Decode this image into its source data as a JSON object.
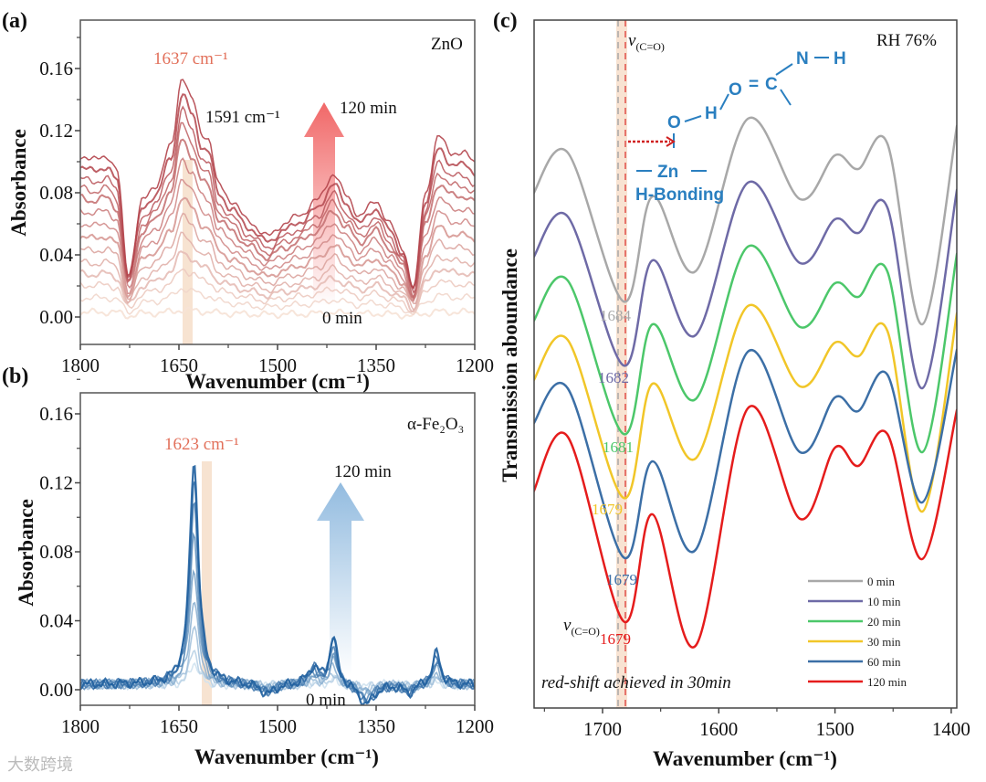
{
  "watermark": "大数跨境",
  "chart_data": [
    {
      "panel": "(a)",
      "type": "line",
      "title": "ZnO",
      "xlabel": "Wavenumber (cm⁻¹)",
      "ylabel": "Absorbance",
      "xlim": [
        1800,
        1200
      ],
      "ylim": [
        -0.018,
        0.19
      ],
      "xticks": [
        1800,
        1650,
        1500,
        1350,
        1200
      ],
      "yticks": [
        "0.00",
        "0.04",
        "0.08",
        "0.12",
        "0.16"
      ],
      "ytick_values": [
        0,
        0.04,
        0.08,
        0.12,
        0.16
      ],
      "annotations": {
        "peak1": "1637 cm⁻¹",
        "peak2": "1591 cm⁻¹",
        "arrow_top": "120 min",
        "arrow_bottom": "0 min"
      },
      "colors": {
        "start": "#f6e2d6",
        "end": "#b2434a",
        "peak": "#e2705a",
        "arrow": "#f06060",
        "band": "#f5dcc6"
      },
      "envelope_x": [
        1800,
        1780,
        1760,
        1745,
        1727,
        1705,
        1685,
        1662,
        1645,
        1630,
        1615,
        1605,
        1590,
        1570,
        1545,
        1515,
        1490,
        1465,
        1440,
        1415,
        1395,
        1375,
        1350,
        1330,
        1310,
        1293,
        1275,
        1255,
        1235,
        1215,
        1200
      ],
      "envelope_y": [
        0.104,
        0.101,
        0.104,
        0.095,
        0.028,
        0.075,
        0.085,
        0.11,
        0.155,
        0.14,
        0.118,
        0.115,
        0.085,
        0.075,
        0.062,
        0.052,
        0.06,
        0.066,
        0.075,
        0.092,
        0.078,
        0.065,
        0.075,
        0.06,
        0.045,
        0.018,
        0.08,
        0.116,
        0.106,
        0.105,
        0.1
      ],
      "series_scales": [
        0.03,
        0.12,
        0.2,
        0.27,
        0.34,
        0.42,
        0.5,
        0.58,
        0.66,
        0.74,
        0.8,
        0.86,
        0.93,
        1.0
      ],
      "series_labels_range": [
        "0 min",
        "120 min"
      ]
    },
    {
      "panel": "(b)",
      "type": "line",
      "title": "α-Fe₂O₃",
      "xlabel": "Wavenumber (cm⁻¹)",
      "ylabel": "Absorbance",
      "xlim": [
        1800,
        1200
      ],
      "ylim": [
        -0.0225,
        0.168
      ],
      "xticks": [
        1800,
        1650,
        1500,
        1350,
        1200
      ],
      "yticks": [
        "0.00",
        "0.04",
        "0.08",
        "0.12",
        "0.16"
      ],
      "ytick_values": [
        0,
        0.04,
        0.08,
        0.12,
        0.16
      ],
      "annotations": {
        "peak1": "1623 cm⁻¹",
        "arrow_top": "120 min",
        "arrow_bottom": "0 min"
      },
      "colors": {
        "start": "#cfe2ef",
        "end": "#1f5f9e",
        "peak": "#e2705a",
        "arrow": "#8db8de",
        "band": "#f5dcc6"
      },
      "peaks": [
        {
          "center": 1627,
          "amplitude": 0.13,
          "width": 8
        },
        {
          "center": 1415,
          "amplitude": 0.028,
          "width": 7
        },
        {
          "center": 1445,
          "amplitude": 0.01,
          "width": 10
        },
        {
          "center": 1258,
          "amplitude": 0.019,
          "width": 7
        },
        {
          "center": 1365,
          "amplitude": -0.012,
          "width": 14
        },
        {
          "center": 1515,
          "amplitude": -0.006,
          "width": 14
        },
        {
          "center": 1300,
          "amplitude": -0.005,
          "width": 10
        }
      ],
      "baseline": 0.003,
      "series_scales": [
        0.1,
        0.15,
        0.25,
        0.38,
        0.52,
        0.66,
        0.8,
        0.92,
        1.0
      ],
      "series_labels_range": [
        "0 min",
        "120 min"
      ]
    },
    {
      "panel": "(c)",
      "type": "line",
      "title": "RH 76%",
      "xlabel": "Wavenumber (cm⁻¹)",
      "ylabel": "Transmission aboundance",
      "xlim": [
        1760,
        1395
      ],
      "ylim": [
        0,
        7.6
      ],
      "xticks": [
        1700,
        1600,
        1500,
        1400
      ],
      "x": [
        1760,
        1730,
        1682,
        1657,
        1620,
        1575,
        1530,
        1500,
        1480,
        1455,
        1425,
        1395
      ],
      "series": [
        {
          "name": "0 min",
          "color": "#a8a8a8",
          "values": [
            5.67,
            6.13,
            4.5,
            5.65,
            4.83,
            6.5,
            5.62,
            6.1,
            5.95,
            6.23,
            4.25,
            6.43
          ],
          "min_label": "1684"
        },
        {
          "name": "10 min",
          "color": "#6e6aa6",
          "values": [
            4.97,
            5.43,
            3.8,
            4.95,
            4.13,
            5.8,
            4.92,
            5.4,
            5.25,
            5.53,
            3.55,
            5.73
          ],
          "min_label": "1682"
        },
        {
          "name": "20 min",
          "color": "#4cc76a",
          "values": [
            4.27,
            4.73,
            3.05,
            4.25,
            3.43,
            5.1,
            4.22,
            4.7,
            4.55,
            4.83,
            2.85,
            5.03
          ],
          "min_label": "1681"
        },
        {
          "name": "30 min",
          "color": "#f1c628",
          "values": [
            3.62,
            4.08,
            2.35,
            3.6,
            2.78,
            4.45,
            3.57,
            4.05,
            3.9,
            4.18,
            2.2,
            4.38
          ],
          "min_label": "1679"
        },
        {
          "name": "60 min",
          "color": "#3c6fa6",
          "values": [
            3.15,
            3.55,
            1.7,
            2.75,
            1.78,
            3.95,
            2.85,
            3.45,
            3.3,
            3.7,
            2.3,
            3.98
          ],
          "min_label": "1679"
        },
        {
          "name": "120 min",
          "color": "#e51c1c",
          "values": [
            2.4,
            3.02,
            1.0,
            2.17,
            0.73,
            3.33,
            2.12,
            2.9,
            2.7,
            3.05,
            1.68,
            3.32
          ],
          "min_label": "1679"
        }
      ],
      "annotations": {
        "nu": "v",
        "nu_sub": "(C=O)",
        "note": "red-shift achieved in 30min",
        "chem": {
          "o1": "O",
          "h1": "H",
          "o2": "O",
          "eq": "=",
          "c": "C",
          "n": "N",
          "h2": "H",
          "zn": "Zn",
          "hbond": "H-Bonding"
        }
      },
      "legend_position": "bottom-right",
      "colors": {
        "band": "#f6d9c3",
        "dash_grey": "#a8a8a8",
        "dash_red": "#e0504a",
        "chem": "#2a7fc0",
        "arrow": "#d02020"
      }
    }
  ]
}
